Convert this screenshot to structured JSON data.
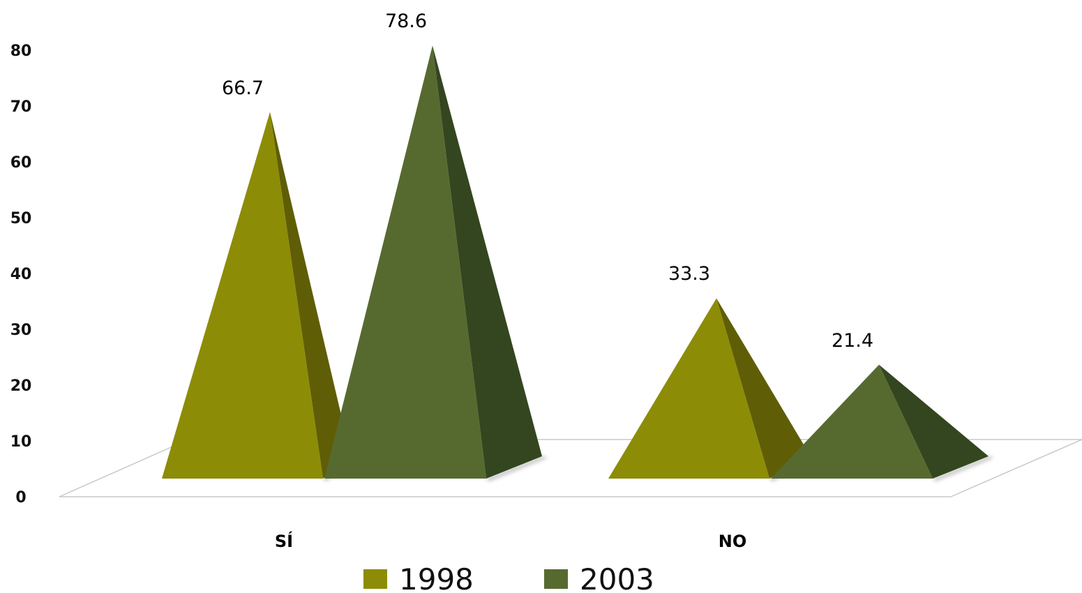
{
  "chart_data": {
    "type": "bar",
    "style": "3d-pyramid",
    "categories": [
      "SÍ",
      "NO"
    ],
    "series": [
      {
        "name": "1998",
        "values": [
          66.7,
          33.3
        ]
      },
      {
        "name": "2003",
        "values": [
          78.6,
          21.4
        ]
      }
    ],
    "yticks": [
      "0",
      "10",
      "20",
      "30",
      "40",
      "50",
      "60",
      "70",
      "80"
    ],
    "ylim": [
      0,
      80
    ],
    "data_labels": [
      [
        "66.7",
        "33.3"
      ],
      [
        "78.6",
        "21.4"
      ]
    ],
    "legend": {
      "position": "bottom",
      "entries": [
        "1998",
        "2003"
      ]
    },
    "grid": false
  },
  "colors": {
    "1998": {
      "front": "#8d8c06",
      "side": "#5f5e06"
    },
    "2003": {
      "front": "#566a30",
      "side": "#34461f"
    },
    "floor_line": "#c8c8c8"
  }
}
